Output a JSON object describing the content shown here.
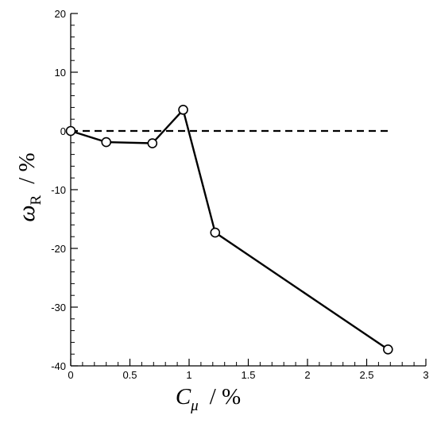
{
  "chart_data": {
    "type": "line",
    "xlim": [
      0,
      3
    ],
    "ylim": [
      -40,
      20
    ],
    "x_ticks": [
      "0",
      "0.5",
      "1",
      "1.5",
      "2",
      "2.5",
      "3"
    ],
    "y_ticks": [
      "20",
      "10",
      "0",
      "-10",
      "-20",
      "-30",
      "-40"
    ],
    "xlabel": {
      "symbol": "C",
      "subscript": "μ",
      "unit": "/ %"
    },
    "ylabel": {
      "symbol": "ω",
      "subscript": "R",
      "unit": "/ %"
    },
    "series": [
      {
        "x": [
          0,
          0.3,
          0.69,
          0.95,
          1.22,
          2.68
        ],
        "values": [
          0,
          -1.9,
          -2.1,
          3.6,
          -17.3,
          -37.2
        ],
        "marker": "open-circle",
        "line": "solid",
        "color": "#000000"
      }
    ],
    "reference_line": {
      "y": 0,
      "style": "dashed",
      "color": "#000000"
    },
    "grid": false,
    "legend": "none"
  }
}
